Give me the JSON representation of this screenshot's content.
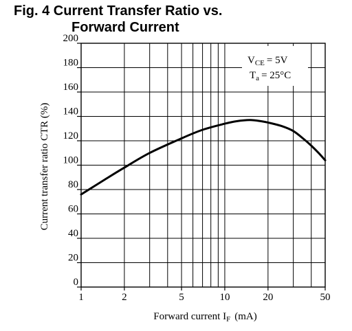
{
  "title": {
    "prefix": "Fig. 4",
    "line1": "Current Transfer Ratio vs.",
    "line2": "Forward Current"
  },
  "chart_data": {
    "type": "line",
    "x_scale": "log",
    "xlim": [
      1,
      50
    ],
    "ylim": [
      0,
      200
    ],
    "x_ticks": [
      1,
      2,
      5,
      10,
      20,
      50
    ],
    "x_tick_labels": [
      "1",
      "2",
      "5",
      "10",
      "20",
      "50"
    ],
    "y_ticks": [
      0,
      20,
      40,
      60,
      80,
      100,
      120,
      140,
      160,
      180,
      200
    ],
    "y_tick_labels": [
      "0",
      "20",
      "40",
      "60",
      "80",
      "100",
      "120",
      "140",
      "160",
      "180",
      "200"
    ],
    "grid": true,
    "xlabel": {
      "main": "Forward current I",
      "sub": "F",
      "unit": "(mA)"
    },
    "ylabel": "Current transfer ratio CTR  (%)",
    "conditions": [
      {
        "symbol": "V",
        "sub": "CE",
        "value": "= 5V"
      },
      {
        "symbol": "T",
        "sub": "a",
        "value": "= 25°C"
      }
    ],
    "series": [
      {
        "x": [
          1,
          1.5,
          2,
          3,
          5,
          7,
          10,
          12,
          15,
          18,
          20,
          25,
          30,
          35,
          40,
          45,
          50
        ],
        "y": [
          76,
          89,
          98,
          110,
          122,
          129,
          134,
          136,
          137,
          136,
          135,
          132,
          128,
          122,
          116,
          110,
          104
        ]
      }
    ]
  }
}
